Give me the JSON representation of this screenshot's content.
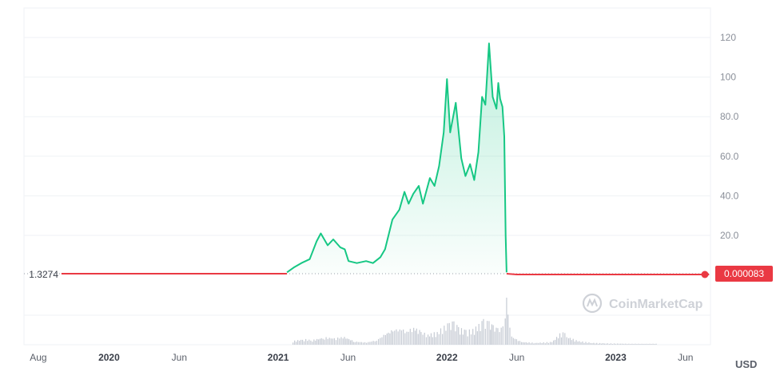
{
  "chart_data": {
    "type": "line",
    "currency_label": "USD",
    "watermark": "CoinMarketCap",
    "start_price_label": "1.3274",
    "current_price_label": "0.000083",
    "y_ticks": [
      "120",
      "100",
      "80.0",
      "60.0",
      "40.0",
      "20.0"
    ],
    "y_tick_values": [
      120,
      100,
      80,
      60,
      40,
      20
    ],
    "ylim": [
      0,
      135
    ],
    "x_ticks": [
      {
        "label": "Aug",
        "date": "2019-08-01",
        "bold": false
      },
      {
        "label": "2020",
        "date": "2020-01-01",
        "bold": true
      },
      {
        "label": "Jun",
        "date": "2020-06-01",
        "bold": false
      },
      {
        "label": "2021",
        "date": "2021-01-01",
        "bold": true
      },
      {
        "label": "Jun",
        "date": "2021-06-01",
        "bold": false
      },
      {
        "label": "2022",
        "date": "2022-01-01",
        "bold": true
      },
      {
        "label": "Jun",
        "date": "2022-06-01",
        "bold": false
      },
      {
        "label": "2023",
        "date": "2023-01-01",
        "bold": true
      },
      {
        "label": "Jun",
        "date": "2023-06-01",
        "bold": false
      }
    ],
    "x_range": [
      "2019-07-01",
      "2023-07-25"
    ],
    "colors": {
      "up": "#16c784",
      "down": "#ea3943",
      "grid": "#eff2f5",
      "volume": "#c5cad3"
    },
    "series": [
      {
        "segment": "below-start",
        "points": [
          [
            "2019-09-20",
            1.33
          ],
          [
            "2020-03-01",
            1.0
          ],
          [
            "2020-09-01",
            1.1
          ],
          [
            "2021-01-10",
            1.2
          ],
          [
            "2021-01-20",
            1.33
          ]
        ]
      },
      {
        "segment": "above-start",
        "points": [
          [
            "2021-01-20",
            1.33
          ],
          [
            "2021-02-05",
            4
          ],
          [
            "2021-02-20",
            6
          ],
          [
            "2021-03-10",
            8
          ],
          [
            "2021-03-25",
            17
          ],
          [
            "2021-04-03",
            21
          ],
          [
            "2021-04-18",
            15
          ],
          [
            "2021-04-30",
            18
          ],
          [
            "2021-05-15",
            14
          ],
          [
            "2021-05-25",
            13
          ],
          [
            "2021-06-02",
            7
          ],
          [
            "2021-06-20",
            6
          ],
          [
            "2021-07-10",
            7
          ],
          [
            "2021-07-25",
            6
          ],
          [
            "2021-08-10",
            9
          ],
          [
            "2021-08-20",
            13
          ],
          [
            "2021-09-05",
            28
          ],
          [
            "2021-09-20",
            33
          ],
          [
            "2021-10-01",
            42
          ],
          [
            "2021-10-10",
            36
          ],
          [
            "2021-10-20",
            41
          ],
          [
            "2021-11-01",
            45
          ],
          [
            "2021-11-10",
            36
          ],
          [
            "2021-11-25",
            49
          ],
          [
            "2021-12-05",
            45
          ],
          [
            "2021-12-15",
            55
          ],
          [
            "2021-12-25",
            72
          ],
          [
            "2022-01-01",
            99
          ],
          [
            "2022-01-08",
            72
          ],
          [
            "2022-01-20",
            87
          ],
          [
            "2022-02-01",
            59
          ],
          [
            "2022-02-10",
            50
          ],
          [
            "2022-02-20",
            56
          ],
          [
            "2022-03-01",
            48
          ],
          [
            "2022-03-10",
            62
          ],
          [
            "2022-03-18",
            90
          ],
          [
            "2022-03-25",
            86
          ],
          [
            "2022-04-02",
            117
          ],
          [
            "2022-04-10",
            90
          ],
          [
            "2022-04-18",
            84
          ],
          [
            "2022-04-22",
            97
          ],
          [
            "2022-04-26",
            89
          ],
          [
            "2022-05-01",
            85
          ],
          [
            "2022-05-05",
            70
          ],
          [
            "2022-05-08",
            20
          ],
          [
            "2022-05-10",
            1.33
          ]
        ]
      },
      {
        "segment": "after-crash",
        "points": [
          [
            "2022-05-10",
            1.33
          ],
          [
            "2022-06-01",
            0.0001
          ],
          [
            "2023-01-01",
            0.0001
          ],
          [
            "2023-07-22",
            8.3e-05
          ]
        ]
      }
    ],
    "volume": [
      [
        "2021-02-01",
        0.08
      ],
      [
        "2021-02-25",
        0.12
      ],
      [
        "2021-03-15",
        0.1
      ],
      [
        "2021-04-10",
        0.16
      ],
      [
        "2021-05-05",
        0.14
      ],
      [
        "2021-05-20",
        0.18
      ],
      [
        "2021-06-15",
        0.07
      ],
      [
        "2021-07-10",
        0.05
      ],
      [
        "2021-08-01",
        0.1
      ],
      [
        "2021-08-20",
        0.24
      ],
      [
        "2021-09-05",
        0.32
      ],
      [
        "2021-09-20",
        0.36
      ],
      [
        "2021-10-05",
        0.3
      ],
      [
        "2021-10-20",
        0.38
      ],
      [
        "2021-11-05",
        0.28
      ],
      [
        "2021-11-20",
        0.22
      ],
      [
        "2021-12-10",
        0.27
      ],
      [
        "2021-12-25",
        0.4
      ],
      [
        "2022-01-05",
        0.45
      ],
      [
        "2022-01-15",
        0.48
      ],
      [
        "2022-01-25",
        0.36
      ],
      [
        "2022-02-10",
        0.3
      ],
      [
        "2022-02-25",
        0.32
      ],
      [
        "2022-03-10",
        0.42
      ],
      [
        "2022-03-20",
        0.52
      ],
      [
        "2022-04-01",
        0.48
      ],
      [
        "2022-04-10",
        0.4
      ],
      [
        "2022-04-20",
        0.34
      ],
      [
        "2022-05-01",
        0.38
      ],
      [
        "2022-05-06",
        0.55
      ],
      [
        "2022-05-09",
        1.0
      ],
      [
        "2022-05-12",
        0.65
      ],
      [
        "2022-05-20",
        0.18
      ],
      [
        "2022-06-10",
        0.06
      ],
      [
        "2022-07-10",
        0.04
      ],
      [
        "2022-08-15",
        0.06
      ],
      [
        "2022-09-08",
        0.3
      ],
      [
        "2022-09-20",
        0.16
      ],
      [
        "2022-10-10",
        0.08
      ],
      [
        "2022-11-10",
        0.04
      ],
      [
        "2022-12-10",
        0.03
      ],
      [
        "2023-02-01",
        0.02
      ],
      [
        "2023-04-01",
        0.02
      ]
    ]
  }
}
